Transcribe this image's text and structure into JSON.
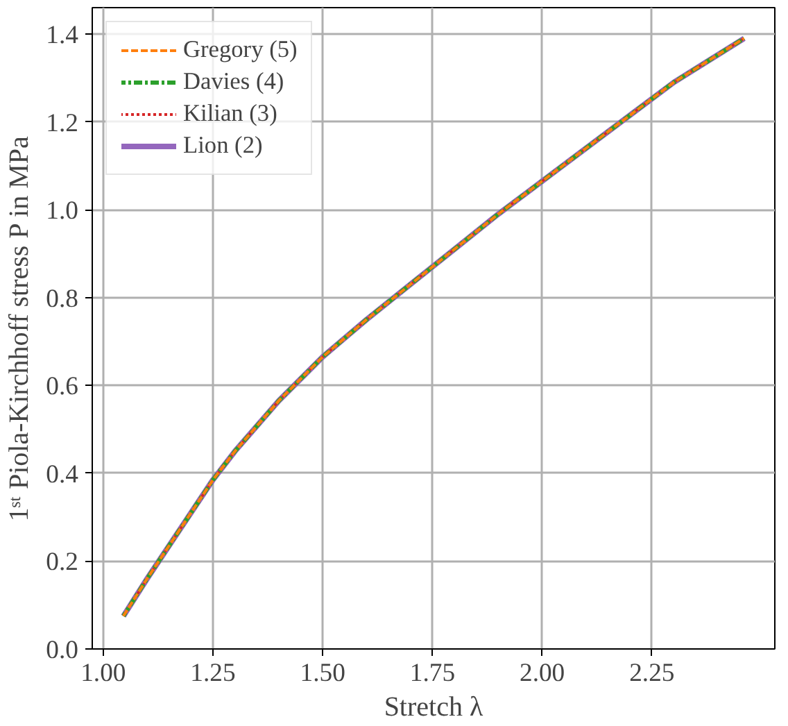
{
  "chart_data": {
    "type": "line",
    "xlabel": "Stretch λ",
    "ylabel": "1ˢᵗ Piola-Kirchhoff stress P in MPa",
    "x": [
      1.046,
      1.1,
      1.15,
      1.2,
      1.25,
      1.3,
      1.4,
      1.5,
      1.6,
      1.7,
      1.8,
      1.9,
      2.0,
      2.1,
      2.2,
      2.3,
      2.46
    ],
    "series": [
      {
        "name": "Gregory (5)",
        "color": "#ff7f0e",
        "line_style": "dashed",
        "values": [
          0.075,
          0.16,
          0.235,
          0.31,
          0.385,
          0.45,
          0.565,
          0.665,
          0.75,
          0.83,
          0.91,
          0.99,
          1.065,
          1.14,
          1.215,
          1.29,
          1.39
        ]
      },
      {
        "name": "Davies (4)",
        "color": "#2ca02c",
        "line_style": "dashdot",
        "values": [
          0.075,
          0.16,
          0.235,
          0.31,
          0.385,
          0.45,
          0.565,
          0.665,
          0.75,
          0.83,
          0.91,
          0.99,
          1.065,
          1.14,
          1.215,
          1.29,
          1.39
        ]
      },
      {
        "name": "Kilian (3)",
        "color": "#d62728",
        "line_style": "dotted",
        "values": [
          0.075,
          0.16,
          0.235,
          0.31,
          0.385,
          0.45,
          0.565,
          0.665,
          0.75,
          0.83,
          0.91,
          0.99,
          1.065,
          1.14,
          1.215,
          1.29,
          1.39
        ]
      },
      {
        "name": "Lion (2)",
        "color": "#9467bd",
        "line_style": "solid",
        "values": [
          0.075,
          0.16,
          0.235,
          0.31,
          0.385,
          0.45,
          0.565,
          0.665,
          0.75,
          0.83,
          0.91,
          0.99,
          1.065,
          1.14,
          1.215,
          1.29,
          1.39
        ]
      }
    ],
    "xlim": [
      0.975,
      2.53
    ],
    "ylim": [
      0,
      1.46
    ],
    "xticks": [
      {
        "value": 1.0,
        "label": "1.00"
      },
      1.25,
      {
        "value": 1.5,
        "label": "1.50"
      },
      1.75,
      {
        "value": 2.0,
        "label": "2.00"
      },
      2.25
    ],
    "yticks": [
      {
        "value": 0,
        "label": "0.0"
      },
      0.2,
      0.4,
      0.6,
      0.8,
      {
        "value": 1.0,
        "label": "1.0"
      },
      1.2,
      1.4
    ],
    "grid": true,
    "legend": "top left",
    "marker": "none"
  }
}
